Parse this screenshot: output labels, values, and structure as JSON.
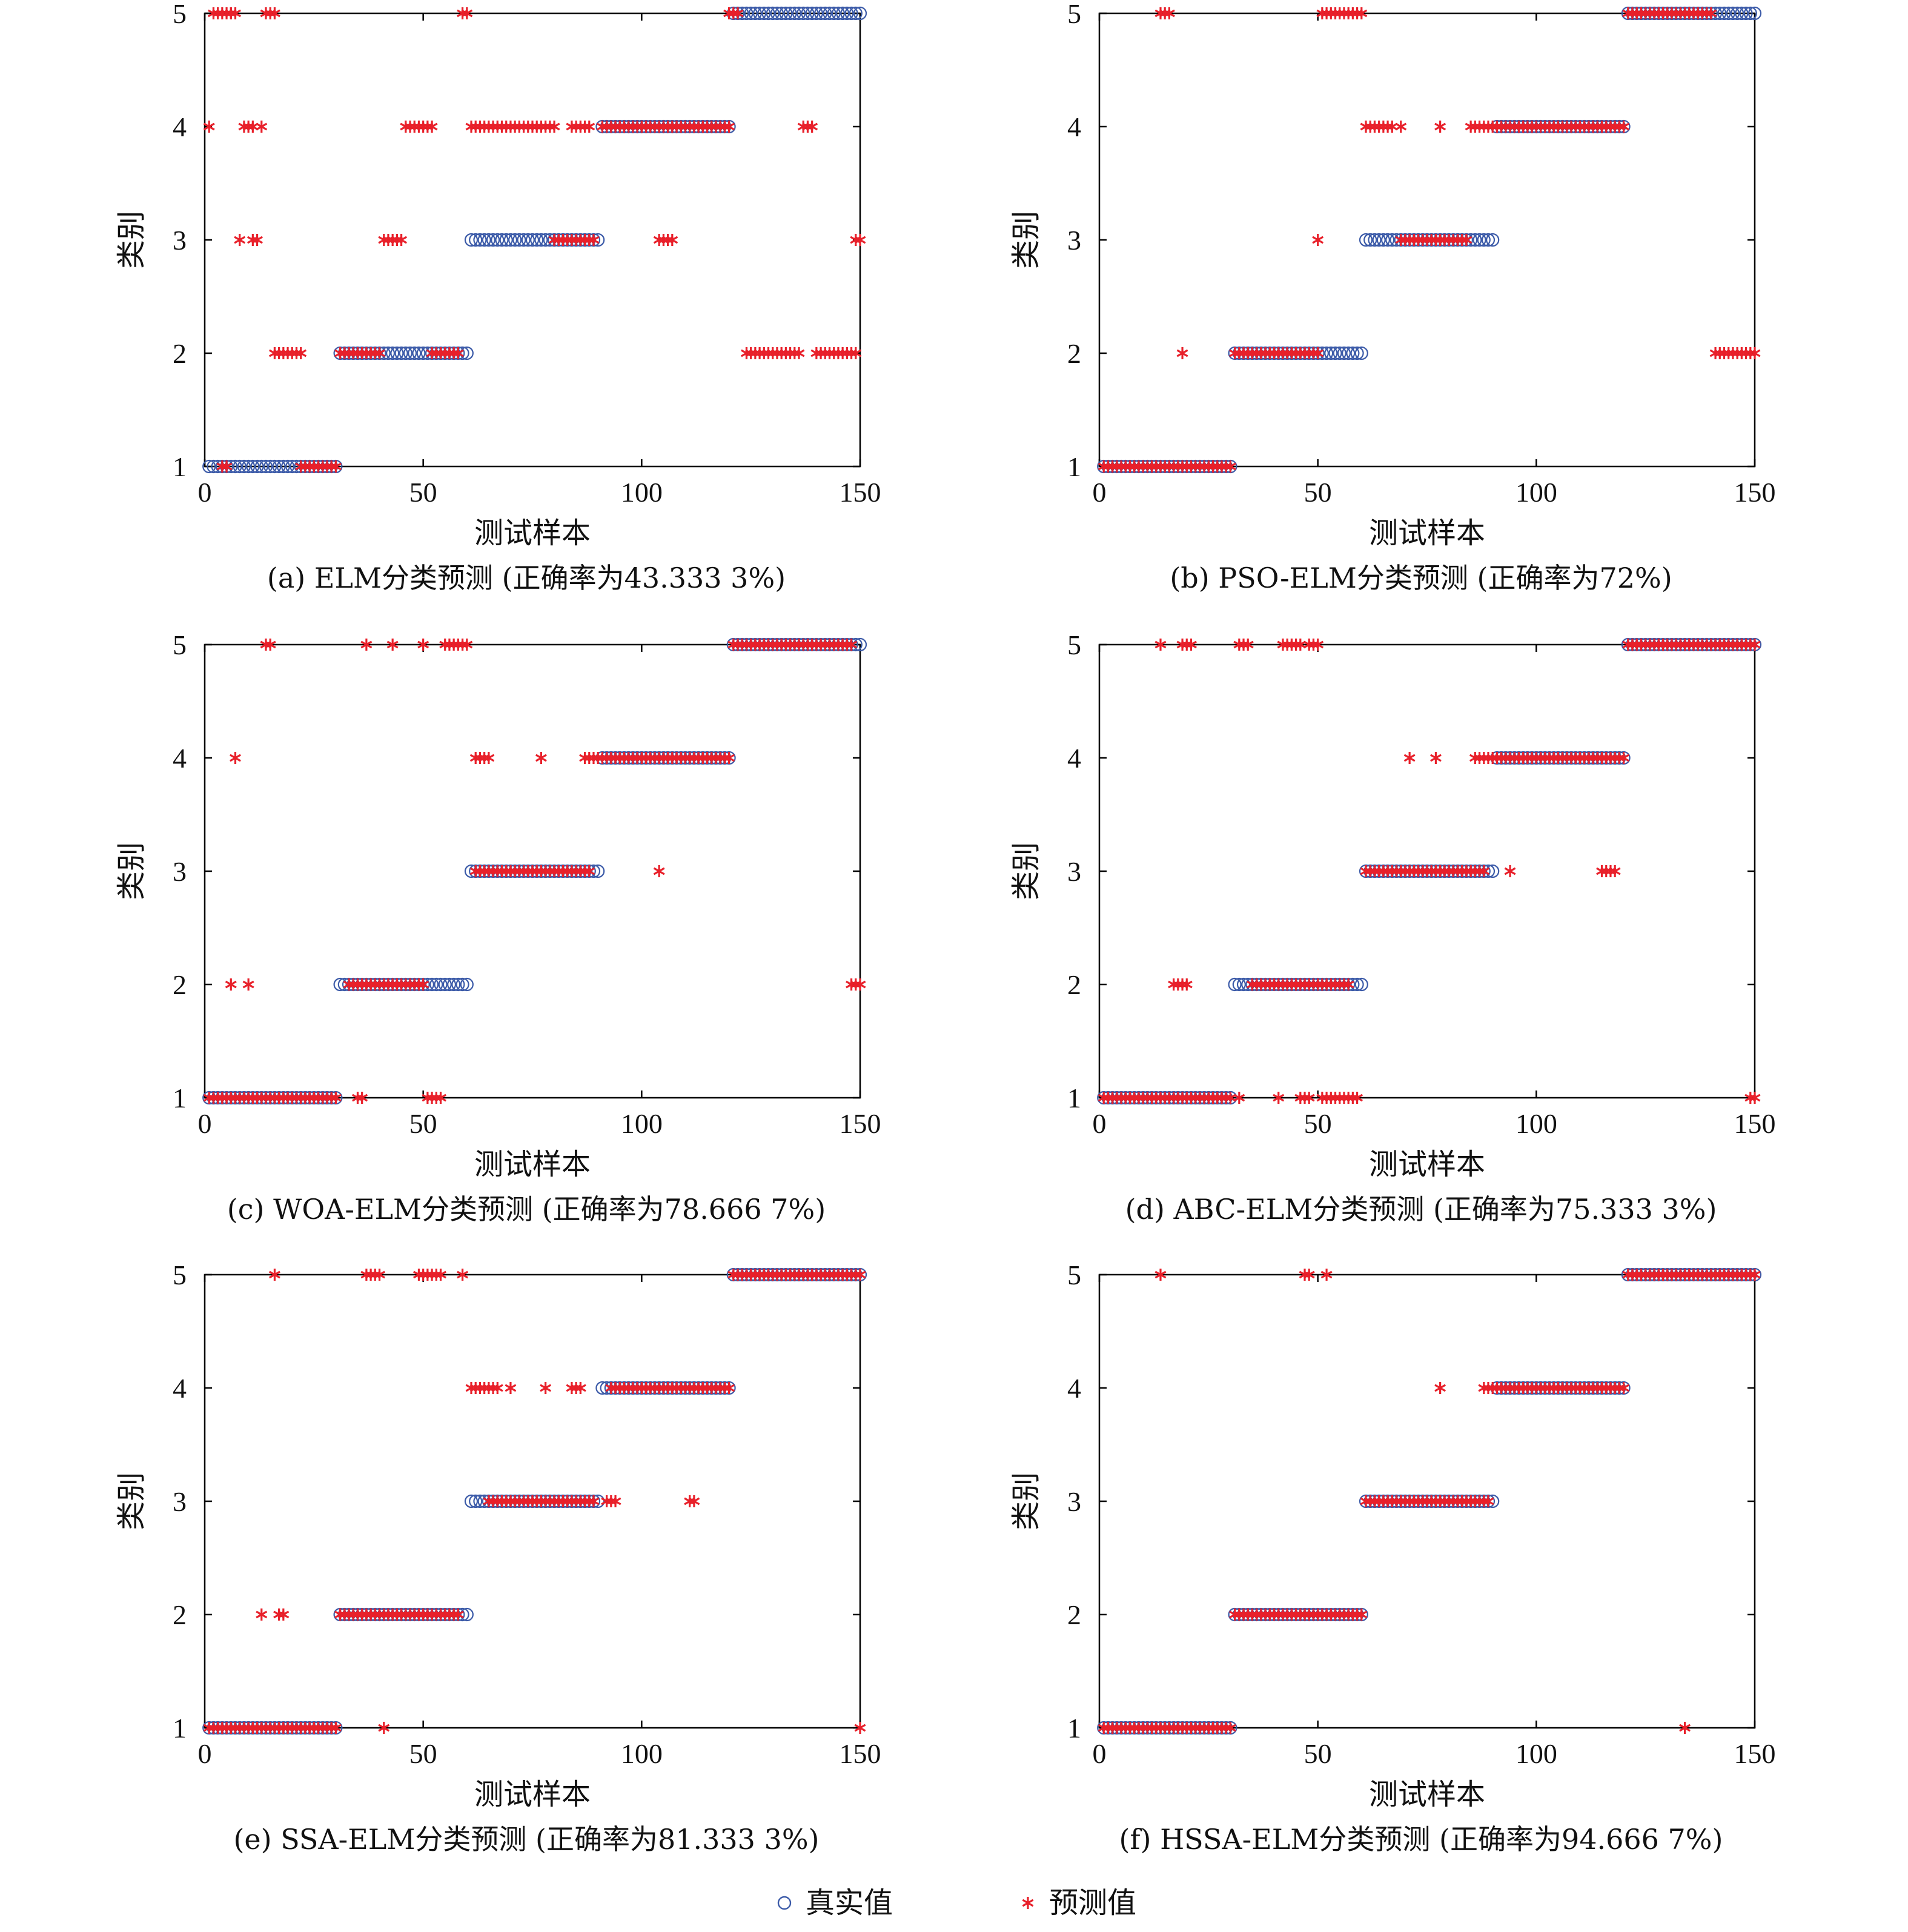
{
  "colors": {
    "true_marker": "#3b5aa8",
    "pred_marker": "#e8202a",
    "axis": "#000000"
  },
  "legend": {
    "true_label": "真实值",
    "pred_label": "预测值",
    "true_icon": "circle-icon",
    "pred_icon": "asterisk-icon"
  },
  "chart_data": [
    {
      "type": "scatter",
      "caption": "(a) ELM分类预测 (正确率为43.333 3%)",
      "xlabel": "测试样本",
      "ylabel": "类别",
      "xlim": [
        0,
        150
      ],
      "ylim": [
        1,
        5
      ],
      "xticks": [
        0,
        50,
        100,
        150
      ],
      "yticks": [
        1,
        2,
        3,
        4,
        5
      ],
      "grid": false,
      "legend_position": "bottom-center",
      "true_runs": [
        [
          1,
          30,
          1
        ],
        [
          31,
          60,
          2
        ],
        [
          61,
          90,
          3
        ],
        [
          91,
          120,
          4
        ],
        [
          121,
          150,
          5
        ]
      ],
      "predicted_runs": [
        [
          1,
          1,
          4
        ],
        [
          2,
          6,
          5
        ],
        [
          4,
          5,
          1
        ],
        [
          6,
          7,
          5
        ],
        [
          8,
          8,
          3
        ],
        [
          9,
          11,
          4
        ],
        [
          11,
          12,
          3
        ],
        [
          13,
          13,
          4
        ],
        [
          14,
          16,
          5
        ],
        [
          16,
          22,
          2
        ],
        [
          22,
          30,
          1
        ],
        [
          31,
          40,
          2
        ],
        [
          41,
          45,
          3
        ],
        [
          46,
          52,
          4
        ],
        [
          52,
          58,
          2
        ],
        [
          59,
          60,
          5
        ],
        [
          61,
          80,
          4
        ],
        [
          80,
          89,
          3
        ],
        [
          84,
          88,
          4
        ],
        [
          91,
          120,
          4
        ],
        [
          104,
          107,
          3
        ],
        [
          120,
          122,
          5
        ],
        [
          124,
          136,
          2
        ],
        [
          137,
          139,
          4
        ],
        [
          140,
          149,
          2
        ],
        [
          149,
          150,
          3
        ]
      ]
    },
    {
      "type": "scatter",
      "caption": "(b) PSO-ELM分类预测 (正确率为72%)",
      "xlabel": "测试样本",
      "ylabel": "类别",
      "xlim": [
        0,
        150
      ],
      "ylim": [
        1,
        5
      ],
      "xticks": [
        0,
        50,
        100,
        150
      ],
      "yticks": [
        1,
        2,
        3,
        4,
        5
      ],
      "grid": false,
      "legend_position": "bottom-center",
      "true_runs": [
        [
          1,
          30,
          1
        ],
        [
          31,
          60,
          2
        ],
        [
          61,
          90,
          3
        ],
        [
          91,
          120,
          4
        ],
        [
          121,
          150,
          5
        ]
      ],
      "predicted_runs": [
        [
          1,
          30,
          1
        ],
        [
          14,
          16,
          5
        ],
        [
          19,
          19,
          2
        ],
        [
          31,
          50,
          2
        ],
        [
          50,
          50,
          3
        ],
        [
          51,
          60,
          5
        ],
        [
          61,
          67,
          4
        ],
        [
          69,
          69,
          4
        ],
        [
          69,
          84,
          3
        ],
        [
          78,
          78,
          4
        ],
        [
          85,
          120,
          4
        ],
        [
          121,
          140,
          5
        ],
        [
          141,
          150,
          2
        ]
      ]
    },
    {
      "type": "scatter",
      "caption": "(c) WOA-ELM分类预测 (正确率为78.666 7%)",
      "xlabel": "测试样本",
      "ylabel": "类别",
      "xlim": [
        0,
        150
      ],
      "ylim": [
        1,
        5
      ],
      "xticks": [
        0,
        50,
        100,
        150
      ],
      "yticks": [
        1,
        2,
        3,
        4,
        5
      ],
      "grid": false,
      "legend_position": "bottom-center",
      "true_runs": [
        [
          1,
          30,
          1
        ],
        [
          31,
          60,
          2
        ],
        [
          61,
          90,
          3
        ],
        [
          91,
          120,
          4
        ],
        [
          121,
          150,
          5
        ]
      ],
      "predicted_runs": [
        [
          1,
          30,
          1
        ],
        [
          6,
          6,
          2
        ],
        [
          7,
          7,
          4
        ],
        [
          10,
          10,
          2
        ],
        [
          14,
          15,
          5
        ],
        [
          33,
          50,
          2
        ],
        [
          35,
          36,
          1
        ],
        [
          37,
          37,
          5
        ],
        [
          43,
          43,
          5
        ],
        [
          50,
          50,
          5
        ],
        [
          51,
          54,
          1
        ],
        [
          55,
          60,
          5
        ],
        [
          62,
          65,
          4
        ],
        [
          62,
          88,
          3
        ],
        [
          77,
          77,
          4
        ],
        [
          87,
          120,
          4
        ],
        [
          104,
          104,
          3
        ],
        [
          121,
          148,
          5
        ],
        [
          148,
          150,
          2
        ]
      ]
    },
    {
      "type": "scatter",
      "caption": "(d) ABC-ELM分类预测 (正确率为75.333 3%)",
      "xlabel": "测试样本",
      "ylabel": "类别",
      "xlim": [
        0,
        150
      ],
      "ylim": [
        1,
        5
      ],
      "xticks": [
        0,
        50,
        100,
        150
      ],
      "yticks": [
        1,
        2,
        3,
        4,
        5
      ],
      "grid": false,
      "legend_position": "bottom-center",
      "true_runs": [
        [
          1,
          30,
          1
        ],
        [
          31,
          60,
          2
        ],
        [
          61,
          90,
          3
        ],
        [
          91,
          120,
          4
        ],
        [
          121,
          150,
          5
        ]
      ],
      "predicted_runs": [
        [
          1,
          30,
          1
        ],
        [
          14,
          14,
          5
        ],
        [
          17,
          20,
          2
        ],
        [
          19,
          21,
          5
        ],
        [
          32,
          32,
          1
        ],
        [
          32,
          34,
          5
        ],
        [
          35,
          57,
          2
        ],
        [
          41,
          41,
          1
        ],
        [
          42,
          46,
          5
        ],
        [
          46,
          48,
          1
        ],
        [
          48,
          50,
          5
        ],
        [
          51,
          54,
          1
        ],
        [
          55,
          59,
          1
        ],
        [
          61,
          88,
          3
        ],
        [
          71,
          71,
          4
        ],
        [
          77,
          77,
          4
        ],
        [
          86,
          120,
          4
        ],
        [
          94,
          94,
          3
        ],
        [
          115,
          118,
          3
        ],
        [
          121,
          150,
          5
        ],
        [
          149,
          150,
          1
        ]
      ]
    },
    {
      "type": "scatter",
      "caption": "(e) SSA-ELM分类预测 (正确率为81.333 3%)",
      "xlabel": "测试样本",
      "ylabel": "类别",
      "xlim": [
        0,
        150
      ],
      "ylim": [
        1,
        5
      ],
      "xticks": [
        0,
        50,
        100,
        150
      ],
      "yticks": [
        1,
        2,
        3,
        4,
        5
      ],
      "grid": false,
      "legend_position": "bottom-center",
      "true_runs": [
        [
          1,
          30,
          1
        ],
        [
          31,
          60,
          2
        ],
        [
          61,
          90,
          3
        ],
        [
          91,
          120,
          4
        ],
        [
          121,
          150,
          5
        ]
      ],
      "predicted_runs": [
        [
          1,
          30,
          1
        ],
        [
          13,
          13,
          2
        ],
        [
          16,
          16,
          5
        ],
        [
          17,
          18,
          2
        ],
        [
          31,
          58,
          2
        ],
        [
          37,
          40,
          5
        ],
        [
          41,
          41,
          1
        ],
        [
          49,
          54,
          5
        ],
        [
          59,
          59,
          5
        ],
        [
          61,
          67,
          4
        ],
        [
          65,
          89,
          3
        ],
        [
          70,
          70,
          4
        ],
        [
          78,
          78,
          4
        ],
        [
          84,
          86,
          4
        ],
        [
          92,
          94,
          3
        ],
        [
          93,
          120,
          4
        ],
        [
          111,
          112,
          3
        ],
        [
          121,
          150,
          5
        ],
        [
          150,
          150,
          1
        ]
      ]
    },
    {
      "type": "scatter",
      "caption": "(f) HSSA-ELM分类预测 (正确率为94.666 7%)",
      "xlabel": "测试样本",
      "ylabel": "类别",
      "xlim": [
        0,
        150
      ],
      "ylim": [
        1,
        5
      ],
      "xticks": [
        0,
        50,
        100,
        150
      ],
      "yticks": [
        1,
        2,
        3,
        4,
        5
      ],
      "grid": false,
      "legend_position": "bottom-center",
      "true_runs": [
        [
          1,
          30,
          1
        ],
        [
          31,
          60,
          2
        ],
        [
          61,
          90,
          3
        ],
        [
          91,
          120,
          4
        ],
        [
          121,
          150,
          5
        ]
      ],
      "predicted_runs": [
        [
          1,
          30,
          1
        ],
        [
          14,
          14,
          5
        ],
        [
          31,
          60,
          2
        ],
        [
          47,
          48,
          5
        ],
        [
          52,
          52,
          5
        ],
        [
          61,
          89,
          3
        ],
        [
          78,
          78,
          4
        ],
        [
          88,
          120,
          4
        ],
        [
          121,
          150,
          5
        ],
        [
          134,
          134,
          1
        ]
      ]
    }
  ]
}
